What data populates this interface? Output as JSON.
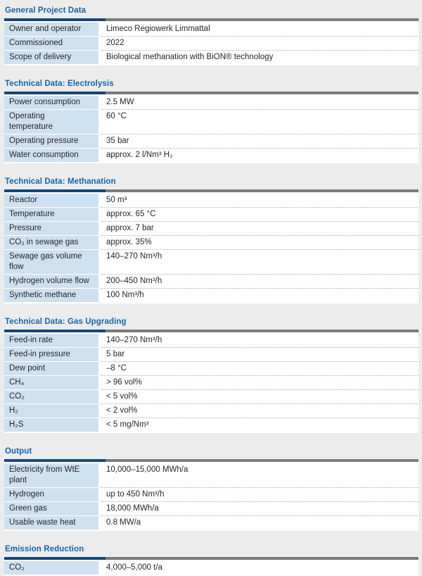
{
  "colors": {
    "page_background": "#ECECEC",
    "heading_blue": "#1565A8",
    "bar_navy": "#164679",
    "bar_gray": "#7B7B7B",
    "label_cell_blue": "#CEE1F0",
    "row_background": "#FFFFFF",
    "text": "#26262C"
  },
  "sections": [
    {
      "title": "General Project Data",
      "rows": [
        {
          "label": "Owner and operator",
          "value": "Limeco Regiowerk Limmattal"
        },
        {
          "label": "Commissioned",
          "value": "2022"
        },
        {
          "label": "Scope of delivery",
          "value": "Biological methanation with BiON® technology"
        }
      ]
    },
    {
      "title": "Technical Data: Electrolysis",
      "rows": [
        {
          "label": "Power consumption",
          "value": "2.5 MW"
        },
        {
          "label": "Operating\ntemperature",
          "value": "60 °C"
        },
        {
          "label": "Operating pressure",
          "value": "35 bar"
        },
        {
          "label": "Water consumption",
          "value": "approx. 2 l/Nm³ H₂"
        }
      ]
    },
    {
      "title": "Technical Data: Methanation",
      "rows": [
        {
          "label": "Reactor",
          "value": "50 m³"
        },
        {
          "label": "Temperature",
          "value": "approx. 65 °C"
        },
        {
          "label": "Pressure",
          "value": "approx. 7 bar"
        },
        {
          "label": "CO₂ in sewage gas",
          "value": "approx. 35%"
        },
        {
          "label": "Sewage gas volume flow",
          "value": "140–270 Nm³/h"
        },
        {
          "label": "Hydrogen volume flow",
          "value": "200–450 Nm³/h"
        },
        {
          "label": "Synthetic methane",
          "value": "100 Nm³/h"
        }
      ]
    },
    {
      "title": "Technical Data: Gas Upgrading",
      "rows": [
        {
          "label": "Feed-in rate",
          "value": "140–270 Nm³/h"
        },
        {
          "label": "Feed-in pressure",
          "value": "5 bar"
        },
        {
          "label": "Dew point",
          "value": "–8 °C"
        },
        {
          "label": "CH₄",
          "value": "> 96 vol%"
        },
        {
          "label": "CO₂",
          "value": "< 5 vol%"
        },
        {
          "label": "H₂",
          "value": "< 2 vol%"
        },
        {
          "label": "H₂S",
          "value": "< 5 mg/Nm³"
        }
      ]
    },
    {
      "title": "Output",
      "rows": [
        {
          "label": "Electricity from WtE plant",
          "value": "10,000–15,000 MWh/a"
        },
        {
          "label": "Hydrogen",
          "value": "up to 450 Nm³/h"
        },
        {
          "label": "Green gas",
          "value": "18,000 MWh/a"
        },
        {
          "label": "Usable waste heat",
          "value": "0.8 MW/a"
        }
      ]
    },
    {
      "title": "Emission Reduction",
      "rows": [
        {
          "label": "CO₂",
          "value": "4,000–5,000 t/a"
        }
      ]
    }
  ]
}
